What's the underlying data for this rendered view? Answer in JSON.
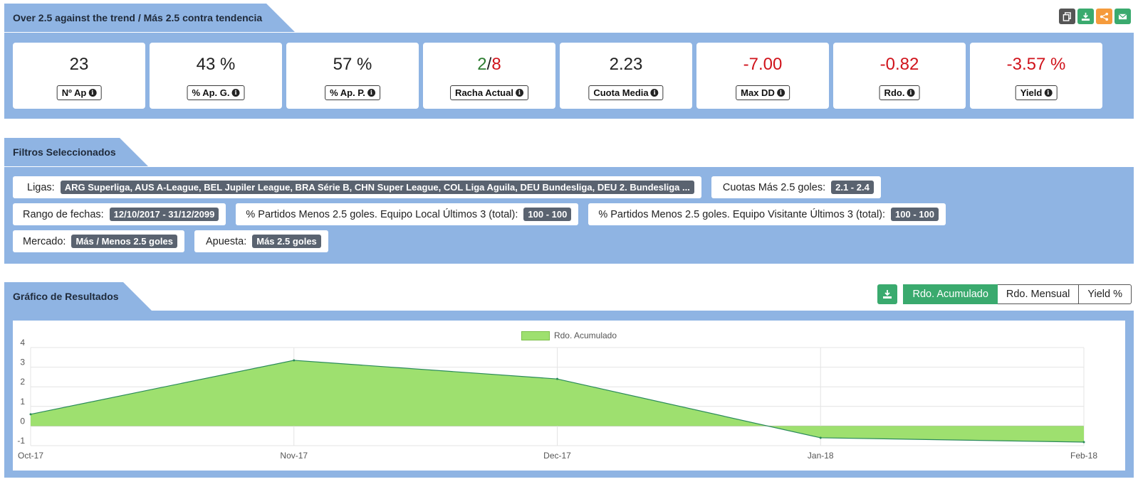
{
  "strategy": {
    "title": "Over 2.5 against the trend / Más 2.5 contra tendencia",
    "tools": [
      {
        "icon": "copy-icon",
        "color": "#555555"
      },
      {
        "icon": "download-icon",
        "color": "#3aaa6e"
      },
      {
        "icon": "share-icon",
        "color": "#f59b3c"
      },
      {
        "icon": "email-icon",
        "color": "#3aaa6e"
      }
    ],
    "stats": [
      {
        "value": "23",
        "label": "Nº Ap",
        "negative": false
      },
      {
        "value": "43 %",
        "label": "% Ap. G.",
        "negative": false
      },
      {
        "value": "57 %",
        "label": "% Ap. P.",
        "negative": false
      },
      {
        "value_win": "2",
        "value_sep": "/",
        "value_loss": "8",
        "label": "Racha Actual",
        "streak": true
      },
      {
        "value": "2.23",
        "label": "Cuota Media",
        "negative": false
      },
      {
        "value": "-7.00",
        "label": "Max DD",
        "negative": true
      },
      {
        "value": "-0.82",
        "label": "Rdo.",
        "negative": true
      },
      {
        "value": "-3.57 %",
        "label": "Yield",
        "negative": true
      }
    ]
  },
  "filters": {
    "title": "Filtros Seleccionados",
    "rows": [
      [
        {
          "key": "Ligas:",
          "value": "ARG Superliga, AUS A-League, BEL Jupiler League, BRA Série B, CHN Super League, COL Liga Aguila, DEU Bundesliga, DEU 2. Bundesliga ..."
        },
        {
          "key": "Cuotas Más 2.5 goles:",
          "value": "2.1 - 2.4"
        }
      ],
      [
        {
          "key": "Rango de fechas:",
          "value": "12/10/2017 - 31/12/2099"
        },
        {
          "key": "% Partidos Menos 2.5 goles. Equipo Local Últimos 3 (total):",
          "value": "100 - 100"
        },
        {
          "key": "% Partidos Menos 2.5 goles. Equipo Visitante Últimos 3 (total):",
          "value": "100 - 100"
        }
      ],
      [
        {
          "key": "Mercado:",
          "value": "Más / Menos 2.5 goles"
        },
        {
          "key": "Apuesta:",
          "value": "Más 2.5 goles"
        }
      ]
    ]
  },
  "results": {
    "title": "Gráfico de Resultados",
    "download_icon": "download-icon",
    "tabs": [
      {
        "label": "Rdo. Acumulado",
        "active": true
      },
      {
        "label": "Rdo. Mensual",
        "active": false
      },
      {
        "label": "Yield %",
        "active": false
      }
    ]
  },
  "chart_data": {
    "type": "area",
    "x": [
      "Oct-17",
      "Nov-17",
      "Dec-17",
      "Jan-18",
      "Feb-18"
    ],
    "series": [
      {
        "name": "Rdo. Acumulado",
        "values": [
          0.6,
          3.35,
          2.4,
          -0.6,
          -0.82
        ],
        "color": "#9ee06f",
        "line_color": "#2a8a5a"
      }
    ],
    "ylim": [
      -1,
      4
    ],
    "yticks": [
      4,
      3,
      2,
      1,
      0,
      -1
    ],
    "grid": true,
    "legend": "top-center"
  }
}
